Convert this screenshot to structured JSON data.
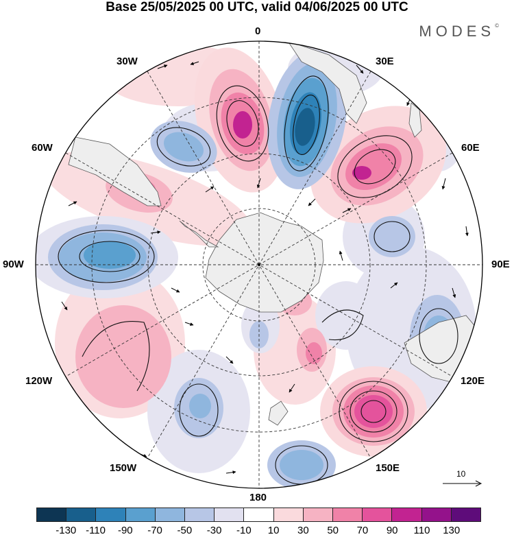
{
  "title": "Base 25/05/2025 00 UTC, valid 04/06/2025 00 UTC",
  "brand": "MODES",
  "brand_mark": "©",
  "longitude_labels": {
    "lon_0": "0",
    "lon_30e": "30E",
    "lon_60e": "60E",
    "lon_90e": "90E",
    "lon_120e": "120E",
    "lon_150e": "150E",
    "lon_180": "180",
    "lon_150w": "150W",
    "lon_120w": "120W",
    "lon_90w": "90W",
    "lon_60w": "60W",
    "lon_30w": "30W"
  },
  "reference_vector": {
    "value": "10"
  },
  "colorbar": {
    "colors": [
      "#0d3553",
      "#185f8c",
      "#2e82b8",
      "#5aa0cf",
      "#8fb6de",
      "#b7c6e6",
      "#e2e1f0",
      "#ffffff",
      "#fadadd",
      "#f6b3c3",
      "#f082a8",
      "#e4539c",
      "#c22391",
      "#94128b",
      "#5e0c7a"
    ],
    "tick_labels": [
      "-130",
      "-110",
      "-90",
      "-70",
      "-50",
      "-30",
      "-10",
      "10",
      "30",
      "50",
      "70",
      "90",
      "110",
      "130"
    ]
  },
  "anomaly_colors": {
    "pos_weak": "#fadadd",
    "pos_mid": "#f6b3c3",
    "pos_strong": "#f082a8",
    "pos_max": "#c22391",
    "neg_weak": "#e2e1f0",
    "neg_mid": "#b7c6e6",
    "neg_strong": "#5aa0cf",
    "neg_max": "#185f8c",
    "land": "#eeeeee"
  }
}
